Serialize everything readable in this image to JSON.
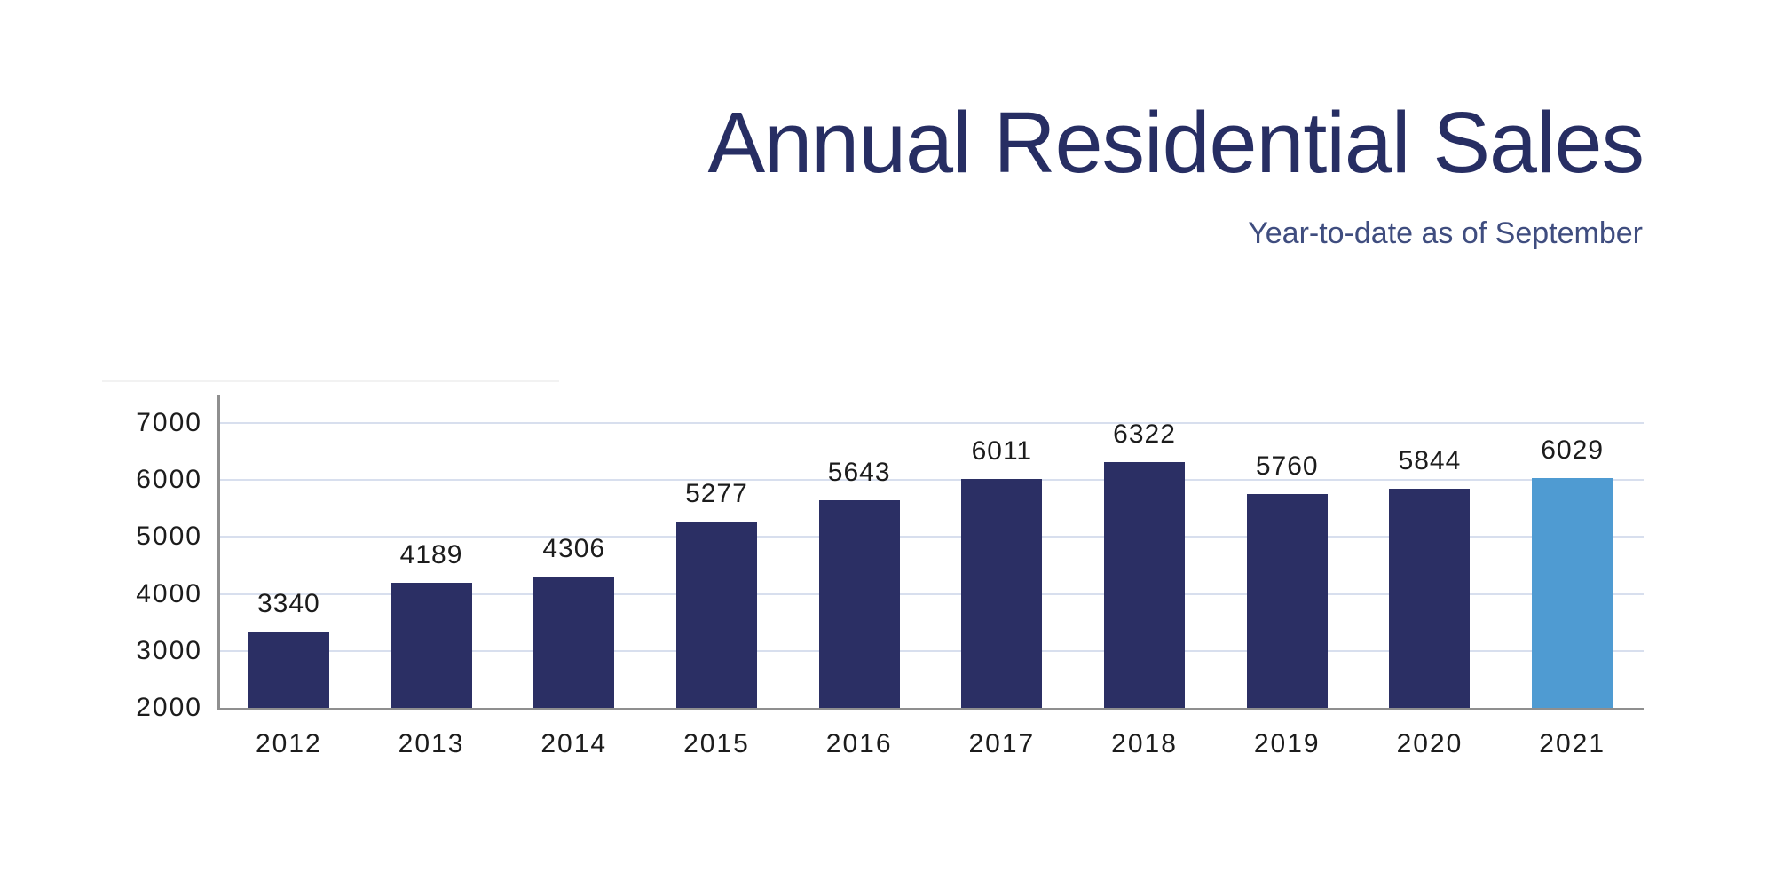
{
  "page": {
    "background": "#ffffff"
  },
  "header": {
    "title": "Annual Residential Sales",
    "subtitle": "Year-to-date as of September",
    "title_color": "#272e63",
    "subtitle_color": "#3f4d7f"
  },
  "chart_data": {
    "type": "bar",
    "title": "Annual Residential Sales",
    "subtitle": "Year-to-date as of September",
    "categories": [
      "2012",
      "2013",
      "2014",
      "2015",
      "2016",
      "2017",
      "2018",
      "2019",
      "2020",
      "2021"
    ],
    "values": [
      3340,
      4189,
      4306,
      5277,
      5643,
      6011,
      6322,
      5760,
      5844,
      6029
    ],
    "value_labels_shown": true,
    "xlabel": "",
    "ylabel": "",
    "ylim": [
      2000,
      7000
    ],
    "yticks": [
      2000,
      3000,
      4000,
      5000,
      6000,
      7000
    ],
    "grid": true,
    "legend": "none",
    "colors": {
      "bar_default": "#2b2f64",
      "bar_highlight": "#4f9bd2",
      "highlight_index": 9,
      "gridline": "#d8dfee",
      "axis_line": "#8f8f8f",
      "tick_label": "#1c1c1c",
      "value_label": "#1c1c1c"
    }
  }
}
